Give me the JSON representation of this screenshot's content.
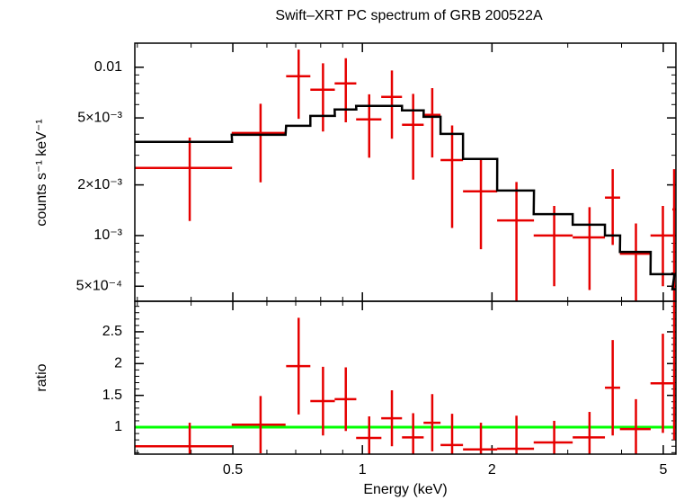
{
  "chart_data": [
    {
      "type": "errorbar",
      "title": "Swift–XRT PC spectrum of GRB 200522A",
      "ylabel": "counts s⁻¹ keV⁻¹",
      "xscale": "log",
      "yscale": "log",
      "xlim": [
        0.296,
        5.35
      ],
      "xticks": [
        0.5,
        1,
        2,
        5
      ],
      "xminorticks": [
        0.3,
        0.4,
        0.6,
        0.7,
        0.8,
        0.9,
        3,
        4
      ],
      "ylim": [
        0.000407,
        0.0139
      ],
      "yticks": [
        {
          "value": 0.01,
          "label": "0.01"
        },
        {
          "value": 0.005,
          "label": "5×10⁻³"
        },
        {
          "value": 0.002,
          "label": "2×10⁻³"
        },
        {
          "value": 0.001,
          "label": "10⁻³"
        },
        {
          "value": 0.0005,
          "label": "5×10⁻⁴"
        }
      ],
      "yminorticks": [
        0.0006,
        0.0007,
        0.0008,
        0.0009,
        0.003,
        0.004,
        0.006,
        0.007,
        0.008,
        0.009
      ],
      "x": [
        0.397,
        0.58,
        0.711,
        0.81,
        0.915,
        1.037,
        1.171,
        1.312,
        1.453,
        1.616,
        1.885,
        2.28,
        2.79,
        3.37,
        3.815,
        4.32,
        4.99,
        5.3
      ],
      "xerr": [
        0.101,
        0.083,
        0.046,
        0.053,
        0.053,
        0.07,
        0.065,
        0.076,
        0.066,
        0.097,
        0.172,
        0.224,
        0.29,
        0.29,
        0.155,
        0.355,
        0.32,
        0.05
      ],
      "series": [
        {
          "name": "data",
          "color": "#e60000",
          "values": [
            0.00252,
            0.00407,
            0.00884,
            0.00735,
            0.00801,
            0.0049,
            0.00666,
            0.00455,
            0.00521,
            0.00281,
            0.00183,
            0.00123,
            0.001,
            0.000975,
            0.00168,
            0.00078,
            0.001,
            0.00143
          ],
          "errors": [
            0.0013,
            0.002,
            0.0039,
            0.0032,
            0.0033,
            0.002,
            0.0029,
            0.0024,
            0.0023,
            0.0017,
            0.001,
            0.00085,
            0.0005,
            0.0005,
            0.0008,
            0.0004,
            0.0005,
            0.00105
          ]
        },
        {
          "name": "model",
          "color": "#000000",
          "values": [
            0.0036,
            0.00397,
            0.00449,
            0.00514,
            0.00561,
            0.00589,
            0.00589,
            0.00554,
            0.00508,
            0.00402,
            0.00285,
            0.00185,
            0.00134,
            0.00116,
            0.001,
            0.0008,
            0.00059,
            0.00048
          ]
        }
      ]
    },
    {
      "type": "errorbar",
      "xlabel": "Energy (keV)",
      "ylabel": "ratio",
      "xscale": "log",
      "yscale": "linear",
      "xlim": [
        0.296,
        5.35
      ],
      "xticks": [
        0.5,
        1,
        2,
        5
      ],
      "xminorticks": [
        0.3,
        0.4,
        0.6,
        0.7,
        0.8,
        0.9,
        3,
        4
      ],
      "ylim": [
        0.576,
        2.98
      ],
      "yticks": [
        1,
        1.5,
        2,
        2.5
      ],
      "yminorticks": [
        0.6,
        0.7,
        0.8,
        0.9,
        1.1,
        1.2,
        1.3,
        1.4,
        1.6,
        1.7,
        1.8,
        1.9,
        2.1,
        2.2,
        2.3,
        2.4,
        2.6,
        2.7,
        2.8,
        2.9
      ],
      "reference_line": {
        "value": 1,
        "color": "#00ff00"
      },
      "x": [
        0.397,
        0.58,
        0.711,
        0.81,
        0.915,
        1.037,
        1.171,
        1.312,
        1.453,
        1.616,
        1.885,
        2.28,
        2.79,
        3.37,
        3.815,
        4.32,
        4.99,
        5.3
      ],
      "xerr": [
        0.101,
        0.083,
        0.046,
        0.053,
        0.053,
        0.07,
        0.065,
        0.076,
        0.066,
        0.097,
        0.172,
        0.224,
        0.29,
        0.29,
        0.155,
        0.355,
        0.32,
        0.05
      ],
      "series": [
        {
          "name": "ratio",
          "color": "#e60000",
          "values": [
            0.7,
            1.04,
            1.96,
            1.41,
            1.44,
            0.83,
            1.14,
            0.84,
            1.07,
            0.72,
            0.65,
            0.66,
            0.76,
            0.84,
            1.62,
            0.97,
            1.69,
            3.0
          ],
          "errors": [
            0.37,
            0.45,
            0.76,
            0.54,
            0.5,
            0.34,
            0.44,
            0.38,
            0.45,
            0.49,
            0.42,
            0.52,
            0.34,
            0.4,
            0.75,
            0.47,
            0.78,
            2.2
          ]
        }
      ]
    }
  ]
}
